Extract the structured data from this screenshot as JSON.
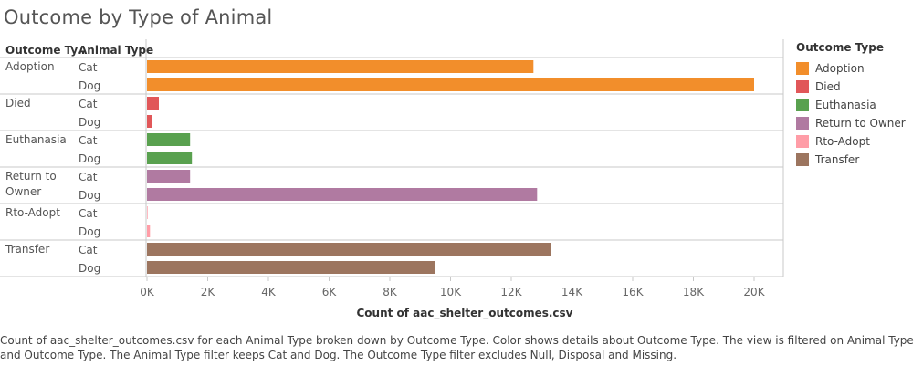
{
  "title": "Outcome by Type of Animal",
  "headers": {
    "outcome": "Outcome Ty..",
    "animal": "Animal Type"
  },
  "axis_title": "Count of aac_shelter_outcomes.csv",
  "legend": {
    "title": "Outcome Type",
    "items": [
      {
        "label": "Adoption",
        "color": "#f28e2b"
      },
      {
        "label": "Died",
        "color": "#e15759"
      },
      {
        "label": "Euthanasia",
        "color": "#59a14f"
      },
      {
        "label": "Return to Owner",
        "color": "#b07aa1"
      },
      {
        "label": "Rto-Adopt",
        "color": "#ff9da7"
      },
      {
        "label": "Transfer",
        "color": "#9c755f"
      }
    ]
  },
  "caption": "Count of aac_shelter_outcomes.csv for each Animal Type broken down by Outcome Type.  Color shows details about Outcome Type. The view is filtered on Animal Type and Outcome Type. The Animal Type filter keeps Cat and Dog. The Outcome Type filter excludes Null, Disposal and Missing.",
  "chart_data": {
    "type": "bar",
    "orientation": "horizontal",
    "title": "Outcome by Type of Animal",
    "xlabel": "Count of aac_shelter_outcomes.csv",
    "xlim": [
      0,
      21000
    ],
    "ticks": [
      0,
      2000,
      4000,
      6000,
      8000,
      10000,
      12000,
      14000,
      16000,
      18000,
      20000
    ],
    "tick_labels": [
      "0K",
      "2K",
      "4K",
      "6K",
      "8K",
      "10K",
      "12K",
      "14K",
      "16K",
      "18K",
      "20K"
    ],
    "groups": [
      {
        "outcome": "Adoption",
        "label_lines": [
          "Adoption"
        ],
        "color": "#f28e2b",
        "rows": [
          {
            "animal": "Cat",
            "value": 12730
          },
          {
            "animal": "Dog",
            "value": 20000
          }
        ]
      },
      {
        "outcome": "Died",
        "label_lines": [
          "Died"
        ],
        "color": "#e15759",
        "rows": [
          {
            "animal": "Cat",
            "value": 390
          },
          {
            "animal": "Dog",
            "value": 150
          }
        ]
      },
      {
        "outcome": "Euthanasia",
        "label_lines": [
          "Euthanasia"
        ],
        "color": "#59a14f",
        "rows": [
          {
            "animal": "Cat",
            "value": 1420
          },
          {
            "animal": "Dog",
            "value": 1480
          }
        ]
      },
      {
        "outcome": "Return to Owner",
        "label_lines": [
          "Return to",
          "Owner"
        ],
        "color": "#b07aa1",
        "rows": [
          {
            "animal": "Cat",
            "value": 1420
          },
          {
            "animal": "Dog",
            "value": 12850
          }
        ]
      },
      {
        "outcome": "Rto-Adopt",
        "label_lines": [
          "Rto-Adopt"
        ],
        "color": "#ff9da7",
        "rows": [
          {
            "animal": "Cat",
            "value": 20
          },
          {
            "animal": "Dog",
            "value": 100
          }
        ]
      },
      {
        "outcome": "Transfer",
        "label_lines": [
          "Transfer"
        ],
        "color": "#9c755f",
        "rows": [
          {
            "animal": "Cat",
            "value": 13300
          },
          {
            "animal": "Dog",
            "value": 9500
          }
        ]
      }
    ]
  }
}
